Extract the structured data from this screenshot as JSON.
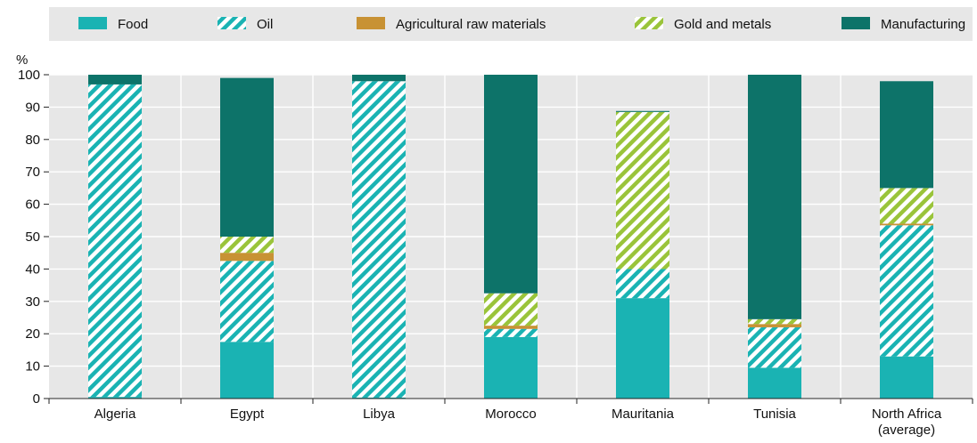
{
  "chart_data": {
    "type": "bar",
    "stacked": true,
    "unit_label": "%",
    "categories": [
      "Algeria",
      "Egypt",
      "Libya",
      "Morocco",
      "Mauritania",
      "Tunisia",
      "North Africa\n(average)"
    ],
    "series": [
      {
        "name": "Food",
        "color": "#1ab3b3",
        "pattern": "solid",
        "values": [
          0.5,
          17.5,
          0.3,
          19,
          31,
          9.5,
          13
        ]
      },
      {
        "name": "Oil",
        "color": "#1ab3b3",
        "pattern": "hatch",
        "values": [
          96.5,
          25,
          97.7,
          2.5,
          9,
          12.5,
          40.5
        ]
      },
      {
        "name": "Agricultural raw materials",
        "color": "#c89234",
        "pattern": "solid",
        "values": [
          0,
          2.5,
          0,
          1,
          0,
          1,
          0.5
        ]
      },
      {
        "name": "Gold and metals",
        "color": "#9ac43a",
        "pattern": "hatch",
        "values": [
          0,
          5,
          0,
          10,
          48.5,
          1.5,
          11
        ]
      },
      {
        "name": "Manufacturing",
        "color": "#0d7369",
        "pattern": "solid",
        "values": [
          3,
          49,
          2,
          67.5,
          0.3,
          75.5,
          33
        ]
      }
    ],
    "ylim": [
      0,
      100
    ],
    "yticks": [
      0,
      10,
      20,
      30,
      40,
      50,
      60,
      70,
      80,
      90,
      100
    ],
    "grid": true,
    "legend_position": "top"
  }
}
